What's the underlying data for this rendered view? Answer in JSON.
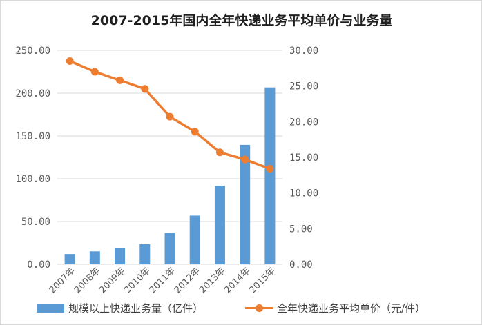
{
  "chart_data": {
    "type": "bar+line",
    "title": "2007-2015年国内全年快递业务平均单价与业务量",
    "categories": [
      "2007年",
      "2008年",
      "2009年",
      "2010年",
      "2011年",
      "2012年",
      "2013年",
      "2014年",
      "2015年"
    ],
    "series": [
      {
        "name": "规模以上快递业务量（亿件）",
        "type": "bar",
        "axis": "left",
        "values": [
          12.0,
          15.1,
          18.6,
          23.4,
          36.7,
          56.9,
          91.9,
          139.6,
          206.7
        ]
      },
      {
        "name": "全年快递业务平均单价（元/件）",
        "type": "line",
        "axis": "right",
        "values": [
          28.5,
          27.0,
          25.8,
          24.6,
          20.7,
          18.6,
          15.7,
          14.7,
          13.4
        ]
      }
    ],
    "left_axis": {
      "min": 0,
      "max": 250,
      "step": 50,
      "ticks": [
        "0.00",
        "50.00",
        "100.00",
        "150.00",
        "200.00",
        "250.00"
      ]
    },
    "right_axis": {
      "min": 0,
      "max": 30,
      "step": 5,
      "ticks": [
        "0.00",
        "5.00",
        "10.00",
        "15.00",
        "20.00",
        "25.00",
        "30.00"
      ]
    },
    "grid": true,
    "legend_position": "bottom",
    "colors": {
      "bar": "#5b9bd5",
      "line": "#ed7d31",
      "grid": "#d9d9d9",
      "text": "#595959"
    }
  }
}
